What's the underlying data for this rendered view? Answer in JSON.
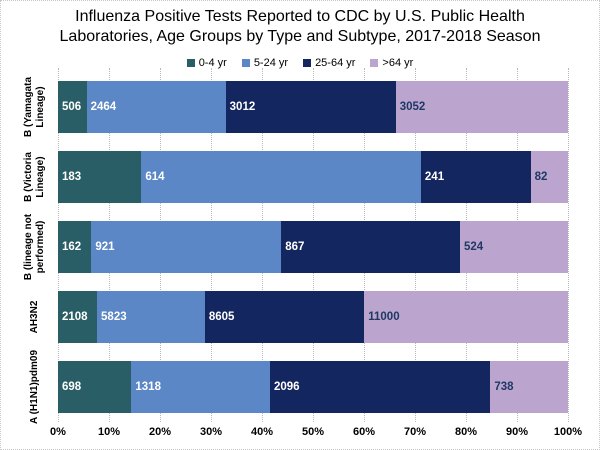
{
  "title": "Influenza Positive Tests Reported to CDC by U.S. Public Health Laboratories, Age Groups by Type and Subtype, 2017-2018 Season",
  "colors": {
    "age_0_4": "#2A5E66",
    "age_5_24": "#5B87C7",
    "age_25_64": "#14265F",
    "age_over_64": "#BBA5CE",
    "label_on_light": "#1F3864",
    "label_on_dark": "#FFFFFF"
  },
  "chart_data": {
    "type": "bar",
    "orientation": "horizontal",
    "stacked": true,
    "normalized_percent": true,
    "title": "Influenza Positive Tests Reported to CDC by U.S. Public Health Laboratories, Age Groups by Type and Subtype, 2017-2018 Season",
    "categories": [
      "B (Yamagata Lineage)",
      "B (Victoria Lineage)",
      "B (lineage not performed)",
      "AH3N2",
      "A (H1N1)pdm09"
    ],
    "series": [
      {
        "name": "0-4 yr",
        "color": "#2A5E66",
        "label_color": "#FFFFFF",
        "values": [
          506,
          183,
          162,
          2108,
          698
        ]
      },
      {
        "name": "5-24 yr",
        "color": "#5B87C7",
        "label_color": "#FFFFFF",
        "values": [
          2464,
          614,
          921,
          5823,
          1318
        ]
      },
      {
        "name": "25-64 yr",
        "color": "#14265F",
        "label_color": "#FFFFFF",
        "values": [
          3012,
          241,
          867,
          8605,
          2096
        ]
      },
      {
        "name": ">64 yr",
        "color": "#BBA5CE",
        "label_color": "#1F3864",
        "values": [
          3052,
          82,
          524,
          11000,
          738
        ]
      }
    ],
    "x_ticks": [
      "0%",
      "10%",
      "20%",
      "30%",
      "40%",
      "50%",
      "60%",
      "70%",
      "80%",
      "90%",
      "100%"
    ],
    "xlim": [
      0,
      100
    ],
    "legend_position": "top",
    "grid": "vertical-dotted"
  }
}
